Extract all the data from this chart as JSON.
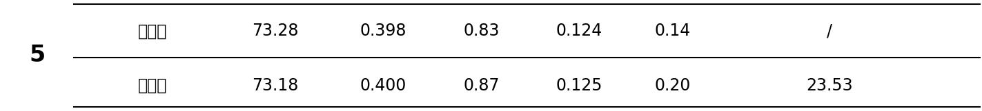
{
  "row_number": "5",
  "row1_label": "标准値",
  "row2_label": "测量値",
  "row1_values": [
    "73.28",
    "0.398",
    "0.83",
    "0.124",
    "0.14",
    "/"
  ],
  "row2_values": [
    "73.18",
    "0.400",
    "0.87",
    "0.125",
    "0.20",
    "23.53"
  ],
  "background_color": "#ffffff",
  "text_color": "#000000",
  "line_color": "#000000",
  "fontsize": 17,
  "row_number_fontsize": 24,
  "fig_width": 14.23,
  "fig_height": 1.62,
  "dpi": 100
}
